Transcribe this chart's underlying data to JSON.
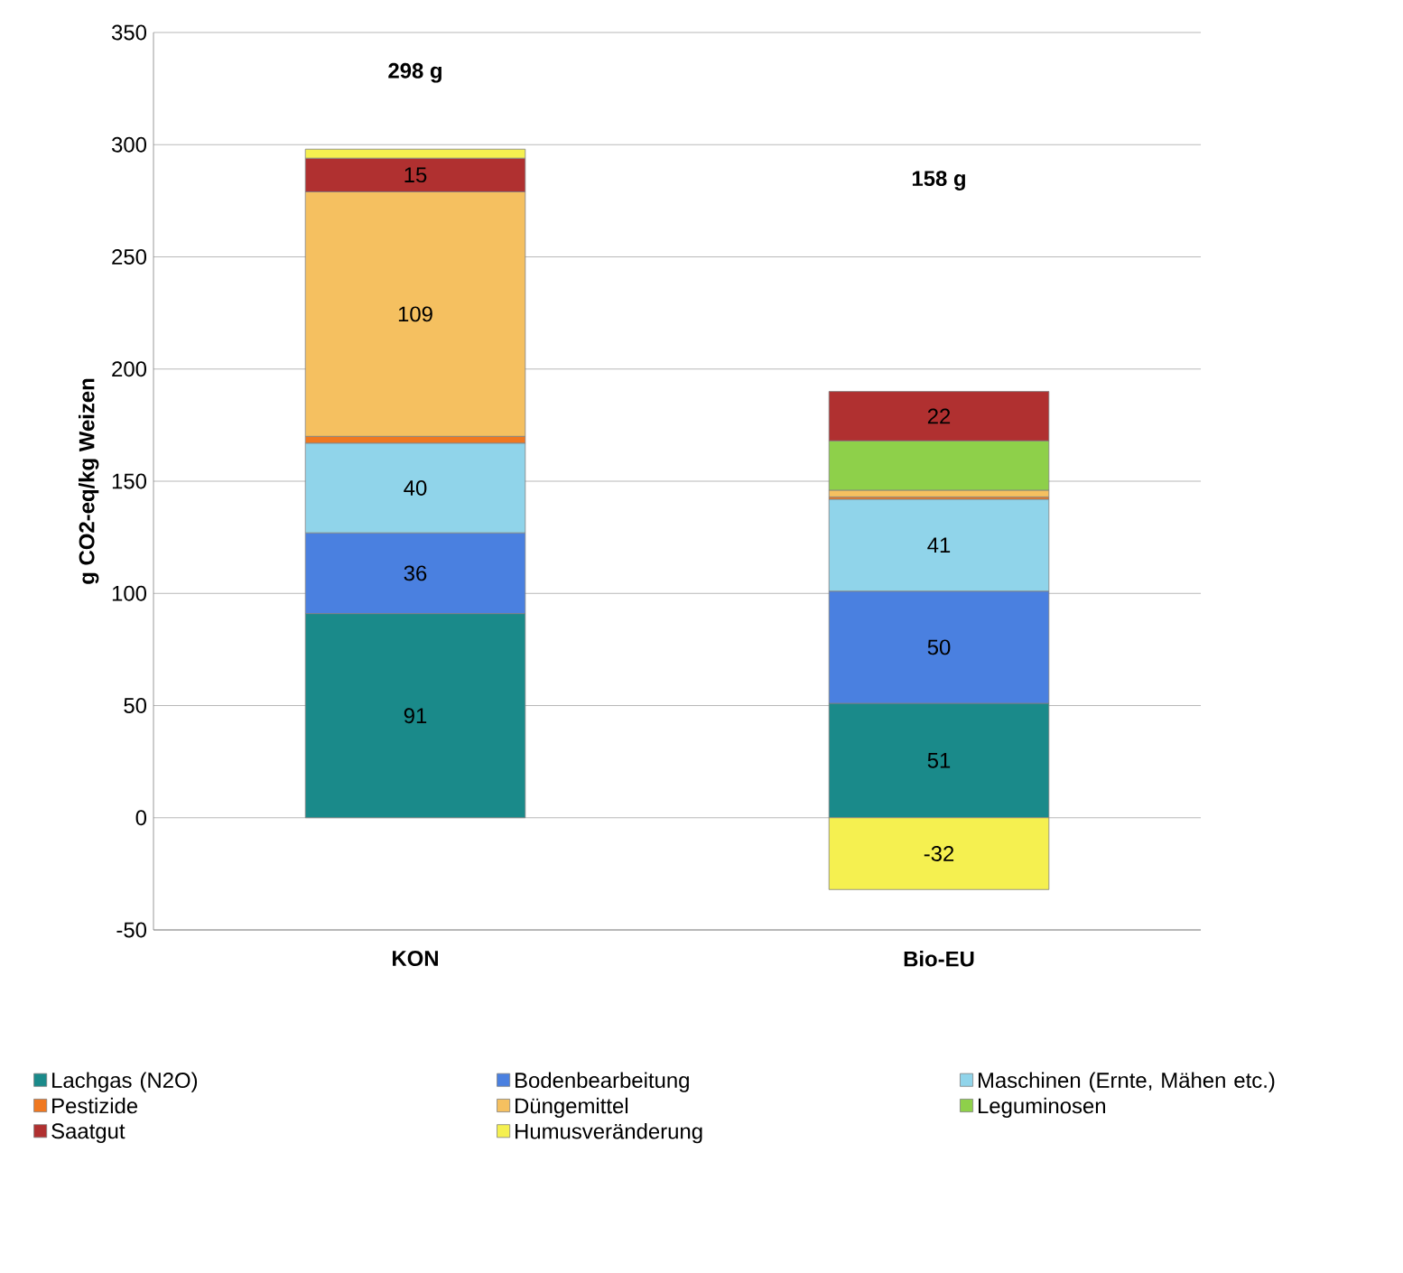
{
  "chart_data": {
    "type": "bar",
    "stacked": true,
    "ylabel": "g CO2-eq/kg Weizen",
    "categories": [
      "KON",
      "Bio-EU"
    ],
    "series": [
      {
        "name": "Lachgas (N2O)",
        "color": "#1a8a8a",
        "values": [
          91,
          51
        ],
        "value_labels": [
          "91",
          "51"
        ]
      },
      {
        "name": "Bodenbearbeitung",
        "color": "#4a80e0",
        "values": [
          36,
          50
        ],
        "value_labels": [
          "36",
          "50"
        ]
      },
      {
        "name": "Maschinen (Ernte, Mähen etc.)",
        "color": "#90d4ea",
        "values": [
          40,
          41
        ],
        "value_labels": [
          "40",
          "41"
        ]
      },
      {
        "name": "Pestizide",
        "color": "#f07820",
        "values": [
          3,
          1
        ],
        "value_labels": [
          null,
          null
        ]
      },
      {
        "name": "Düngemittel",
        "color": "#f5c060",
        "values": [
          109,
          3
        ],
        "value_labels": [
          "109",
          null
        ]
      },
      {
        "name": "Leguminosen",
        "color": "#8ed04a",
        "values": [
          0,
          22
        ],
        "value_labels": [
          null,
          null
        ]
      },
      {
        "name": "Saatgut",
        "color": "#b03030",
        "values": [
          15,
          22
        ],
        "value_labels": [
          "15",
          "22"
        ]
      },
      {
        "name": "Humusveränderung",
        "color": "#f5f050",
        "values": [
          4,
          -32
        ],
        "value_labels": [
          null,
          "-32"
        ]
      }
    ],
    "annotations": [
      "298 g",
      "158 g"
    ],
    "ylim": [
      -50,
      350
    ],
    "yticks": [
      -50,
      0,
      50,
      100,
      150,
      200,
      250,
      300,
      350
    ],
    "grid": "y",
    "legend": "bottom"
  }
}
